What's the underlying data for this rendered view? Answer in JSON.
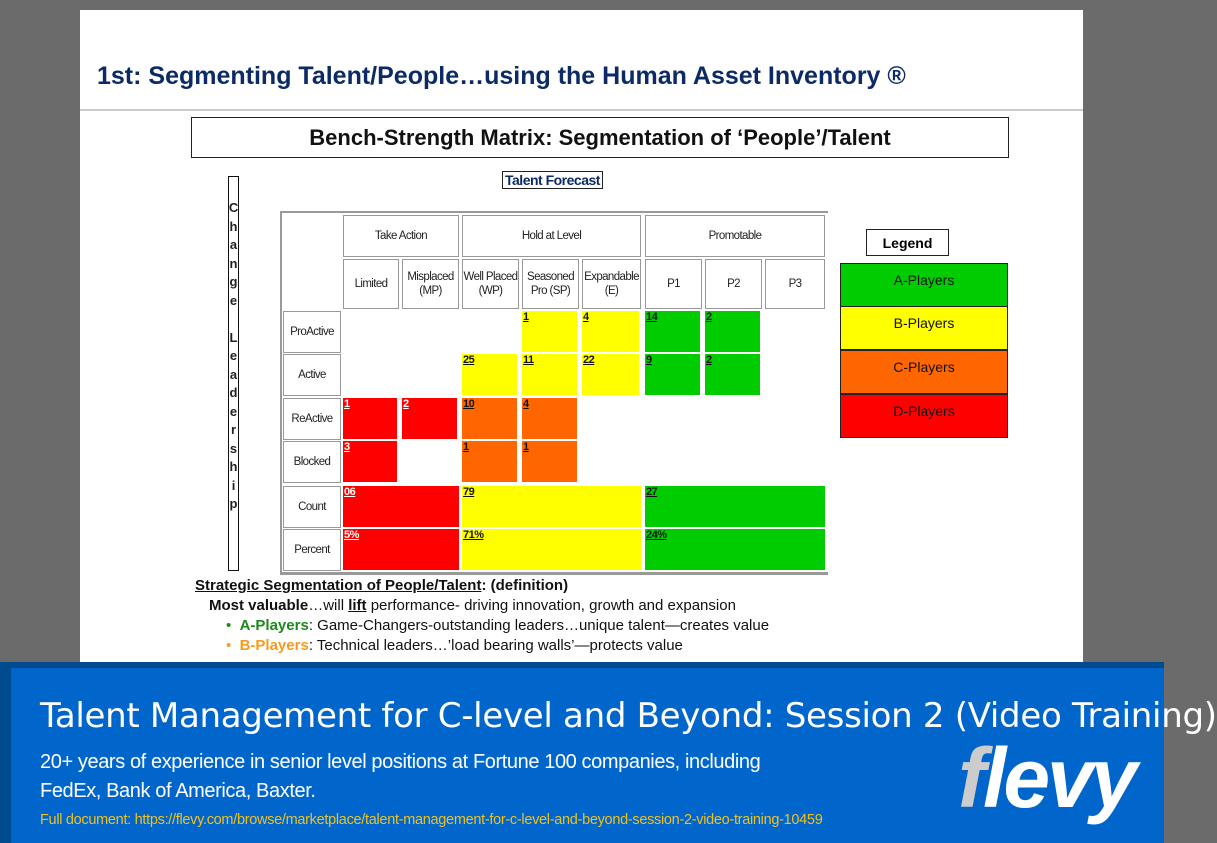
{
  "slide": {
    "title": "1st: Segmenting Talent/People…using the Human Asset Inventory ®",
    "matrix_title": "Bench-Strength Matrix: Segmentation of ‘People’/Talent",
    "vertical_label": "Change Leadership",
    "forecast_label": "Talent Forecast",
    "group_headers": [
      "Take Action",
      "Hold at Level",
      "Promotable"
    ],
    "column_headers": [
      "Limited",
      "Misplaced (MP)",
      "Well Placed (WP)",
      "Seasoned Pro (SP)",
      "Expandable (E)",
      "P1",
      "P2",
      "P3"
    ],
    "row_headers": [
      "ProActive",
      "Active",
      "ReActive",
      "Blocked",
      "Count",
      "Percent"
    ],
    "colors": {
      "A": "#00cc00",
      "B": "#ffff00",
      "C": "#ff6600",
      "D": "#ff0000"
    },
    "cells": [
      {
        "row": 0,
        "col": 3,
        "span": 1,
        "cat": "B",
        "value": "1"
      },
      {
        "row": 0,
        "col": 4,
        "span": 1,
        "cat": "B",
        "value": "4"
      },
      {
        "row": 0,
        "col": 5,
        "span": 1,
        "cat": "A",
        "value": "14"
      },
      {
        "row": 0,
        "col": 6,
        "span": 1,
        "cat": "A",
        "value": "2"
      },
      {
        "row": 1,
        "col": 2,
        "span": 1,
        "cat": "B",
        "value": "25"
      },
      {
        "row": 1,
        "col": 3,
        "span": 1,
        "cat": "B",
        "value": "11"
      },
      {
        "row": 1,
        "col": 4,
        "span": 1,
        "cat": "B",
        "value": "22"
      },
      {
        "row": 1,
        "col": 5,
        "span": 1,
        "cat": "A",
        "value": "9"
      },
      {
        "row": 1,
        "col": 6,
        "span": 1,
        "cat": "A",
        "value": "2"
      },
      {
        "row": 2,
        "col": 0,
        "span": 1,
        "cat": "D",
        "value": "1"
      },
      {
        "row": 2,
        "col": 1,
        "span": 1,
        "cat": "D",
        "value": "2"
      },
      {
        "row": 2,
        "col": 2,
        "span": 1,
        "cat": "C",
        "value": "10"
      },
      {
        "row": 2,
        "col": 3,
        "span": 1,
        "cat": "C",
        "value": "4"
      },
      {
        "row": 3,
        "col": 0,
        "span": 1,
        "cat": "D",
        "value": "3"
      },
      {
        "row": 3,
        "col": 2,
        "span": 1,
        "cat": "C",
        "value": "1"
      },
      {
        "row": 3,
        "col": 3,
        "span": 1,
        "cat": "C",
        "value": "1"
      },
      {
        "row": 4,
        "col": 0,
        "span": 2,
        "cat": "D",
        "value": "06"
      },
      {
        "row": 4,
        "col": 2,
        "span": 3,
        "cat": "B",
        "value": "79"
      },
      {
        "row": 4,
        "col": 5,
        "span": 3,
        "cat": "A",
        "value": "27"
      },
      {
        "row": 5,
        "col": 0,
        "span": 2,
        "cat": "D",
        "value": "5%"
      },
      {
        "row": 5,
        "col": 2,
        "span": 3,
        "cat": "B",
        "value": "71%"
      },
      {
        "row": 5,
        "col": 5,
        "span": 3,
        "cat": "A",
        "value": "24%"
      }
    ],
    "legend": {
      "title": "Legend",
      "items": [
        {
          "label": "A-Players",
          "cat": "A"
        },
        {
          "label": "B-Players",
          "cat": "B"
        },
        {
          "label": "C-Players",
          "cat": "C"
        },
        {
          "label": "D-Players",
          "cat": "D"
        }
      ]
    },
    "definition": {
      "heading": "Strategic Segmentation of People/Talent",
      "heading_suffix": ": (definition)",
      "most_valuable": "Most valuable",
      "mv_text1": "…will ",
      "mv_lift": "lift",
      "mv_text2": " performance- driving innovation, growth and  expansion",
      "a_label": "A-Players",
      "a_text": ": Game-Changers-outstanding leaders…unique talent—creates value",
      "b_label": "B-Players",
      "b_text": ": Technical leaders…’load bearing walls’—protects value",
      "a_color": "#1a8a1a",
      "b_color": "#f59a1a"
    }
  },
  "banner": {
    "title": "Talent Management for C-level and Beyond: Session 2 (Video Training)",
    "subtitle_line1": "20+ years of experience in senior level positions at Fortune 100 companies, including",
    "subtitle_line2": "FedEx, Bank of America, Baxter.",
    "link": "Full document: https://flevy.com/browse/marketplace/talent-management-for-c-level-and-beyond-session-2-video-training-10459",
    "logo": "flevy"
  }
}
